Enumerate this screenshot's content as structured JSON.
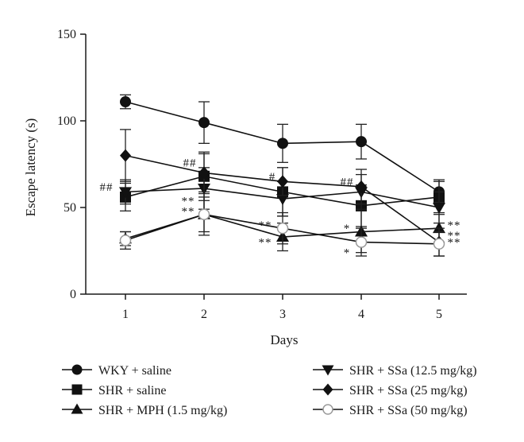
{
  "chart_data": {
    "type": "line",
    "title": "",
    "xlabel": "Days",
    "ylabel": "Escape latency (s)",
    "x": [
      1,
      2,
      3,
      4,
      5
    ],
    "xticks": [
      "1",
      "2",
      "3",
      "4",
      "5"
    ],
    "ylim": [
      0,
      150
    ],
    "yticks": [
      "0",
      "50",
      "100",
      "150"
    ],
    "grid": false,
    "legend_position": "bottom",
    "error_bars": true,
    "series": [
      {
        "name": "WKY + saline",
        "marker": "circle-filled",
        "values": [
          111,
          99,
          87,
          88,
          59
        ],
        "errors": [
          4,
          12,
          11,
          10,
          7
        ]
      },
      {
        "name": "SHR + saline",
        "marker": "square-filled",
        "values": [
          56,
          68,
          59,
          51,
          56
        ],
        "errors": [
          8,
          14,
          14,
          12,
          9
        ]
      },
      {
        "name": "SHR + MPH (1.5 mg/kg)",
        "marker": "triangle-up-filled",
        "values": [
          32,
          46,
          33,
          36,
          38
        ],
        "errors": [
          4,
          10,
          8,
          12,
          8
        ]
      },
      {
        "name": "SHR + SSa (12.5 mg/kg)",
        "marker": "triangle-down-filled",
        "values": [
          59,
          61,
          55,
          59,
          50
        ],
        "errors": [
          7,
          12,
          10,
          10,
          9
        ]
      },
      {
        "name": "SHR + SSa (25 mg/kg)",
        "marker": "diamond-filled",
        "values": [
          80,
          70,
          65,
          62,
          30
        ],
        "errors": [
          15,
          11,
          8,
          10,
          8
        ]
      },
      {
        "name": "SHR + SSa (50 mg/kg)",
        "marker": "circle-open",
        "values": [
          31,
          46,
          38,
          30,
          29
        ],
        "errors": [
          5,
          12,
          9,
          8,
          7
        ]
      }
    ],
    "annotations": [
      {
        "text": "##",
        "x": 1,
        "y": 62
      },
      {
        "text": "##",
        "x": 2,
        "y": 76
      },
      {
        "text": "**",
        "x": 2,
        "y": 54
      },
      {
        "text": "**",
        "x": 2,
        "y": 48
      },
      {
        "text": "#",
        "x": 3,
        "y": 68
      },
      {
        "text": "**",
        "x": 3,
        "y": 40
      },
      {
        "text": "**",
        "x": 3,
        "y": 30
      },
      {
        "text": "##",
        "x": 4,
        "y": 65
      },
      {
        "text": "*",
        "x": 4,
        "y": 38
      },
      {
        "text": "*",
        "x": 4,
        "y": 24
      },
      {
        "text": "**",
        "x": 5,
        "y": 40
      },
      {
        "text": "**",
        "x": 5,
        "y": 34
      },
      {
        "text": "**",
        "x": 5,
        "y": 30
      }
    ]
  }
}
